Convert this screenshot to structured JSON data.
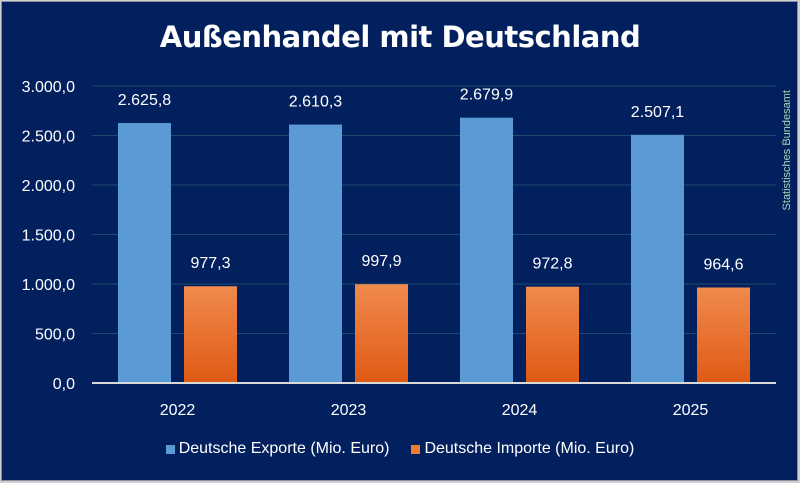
{
  "chart_data": {
    "type": "bar",
    "title": "Außenhandel mit Deutschland",
    "source": "Statistisches Bundesamt",
    "categories": [
      "2022",
      "2023",
      "2024",
      "2025"
    ],
    "series": [
      {
        "name": "Deutsche Exporte (Mio. Euro)",
        "values": [
          2625.8,
          2610.3,
          2679.9,
          2507.1
        ],
        "labels": [
          "2.625,8",
          "2.610,3",
          "2.679,9",
          "2.507,1"
        ],
        "color": "#5b9bd5"
      },
      {
        "name": "Deutsche Importe (Mio. Euro)",
        "values": [
          977.3,
          997.9,
          972.8,
          964.6
        ],
        "labels": [
          "977,3",
          "997,9",
          "972,8",
          "964,6"
        ],
        "color": "#ed7d31"
      }
    ],
    "ylim": [
      0,
      3000
    ],
    "yticks": [
      0,
      500,
      1000,
      1500,
      2000,
      2500,
      3000
    ],
    "ytick_labels": [
      "0,0",
      "500,0",
      "1.000,0",
      "1.500,0",
      "2.000,0",
      "2.500,0",
      "3.000,0"
    ],
    "grid": true,
    "legend": "bottom",
    "background": "#03205e"
  }
}
